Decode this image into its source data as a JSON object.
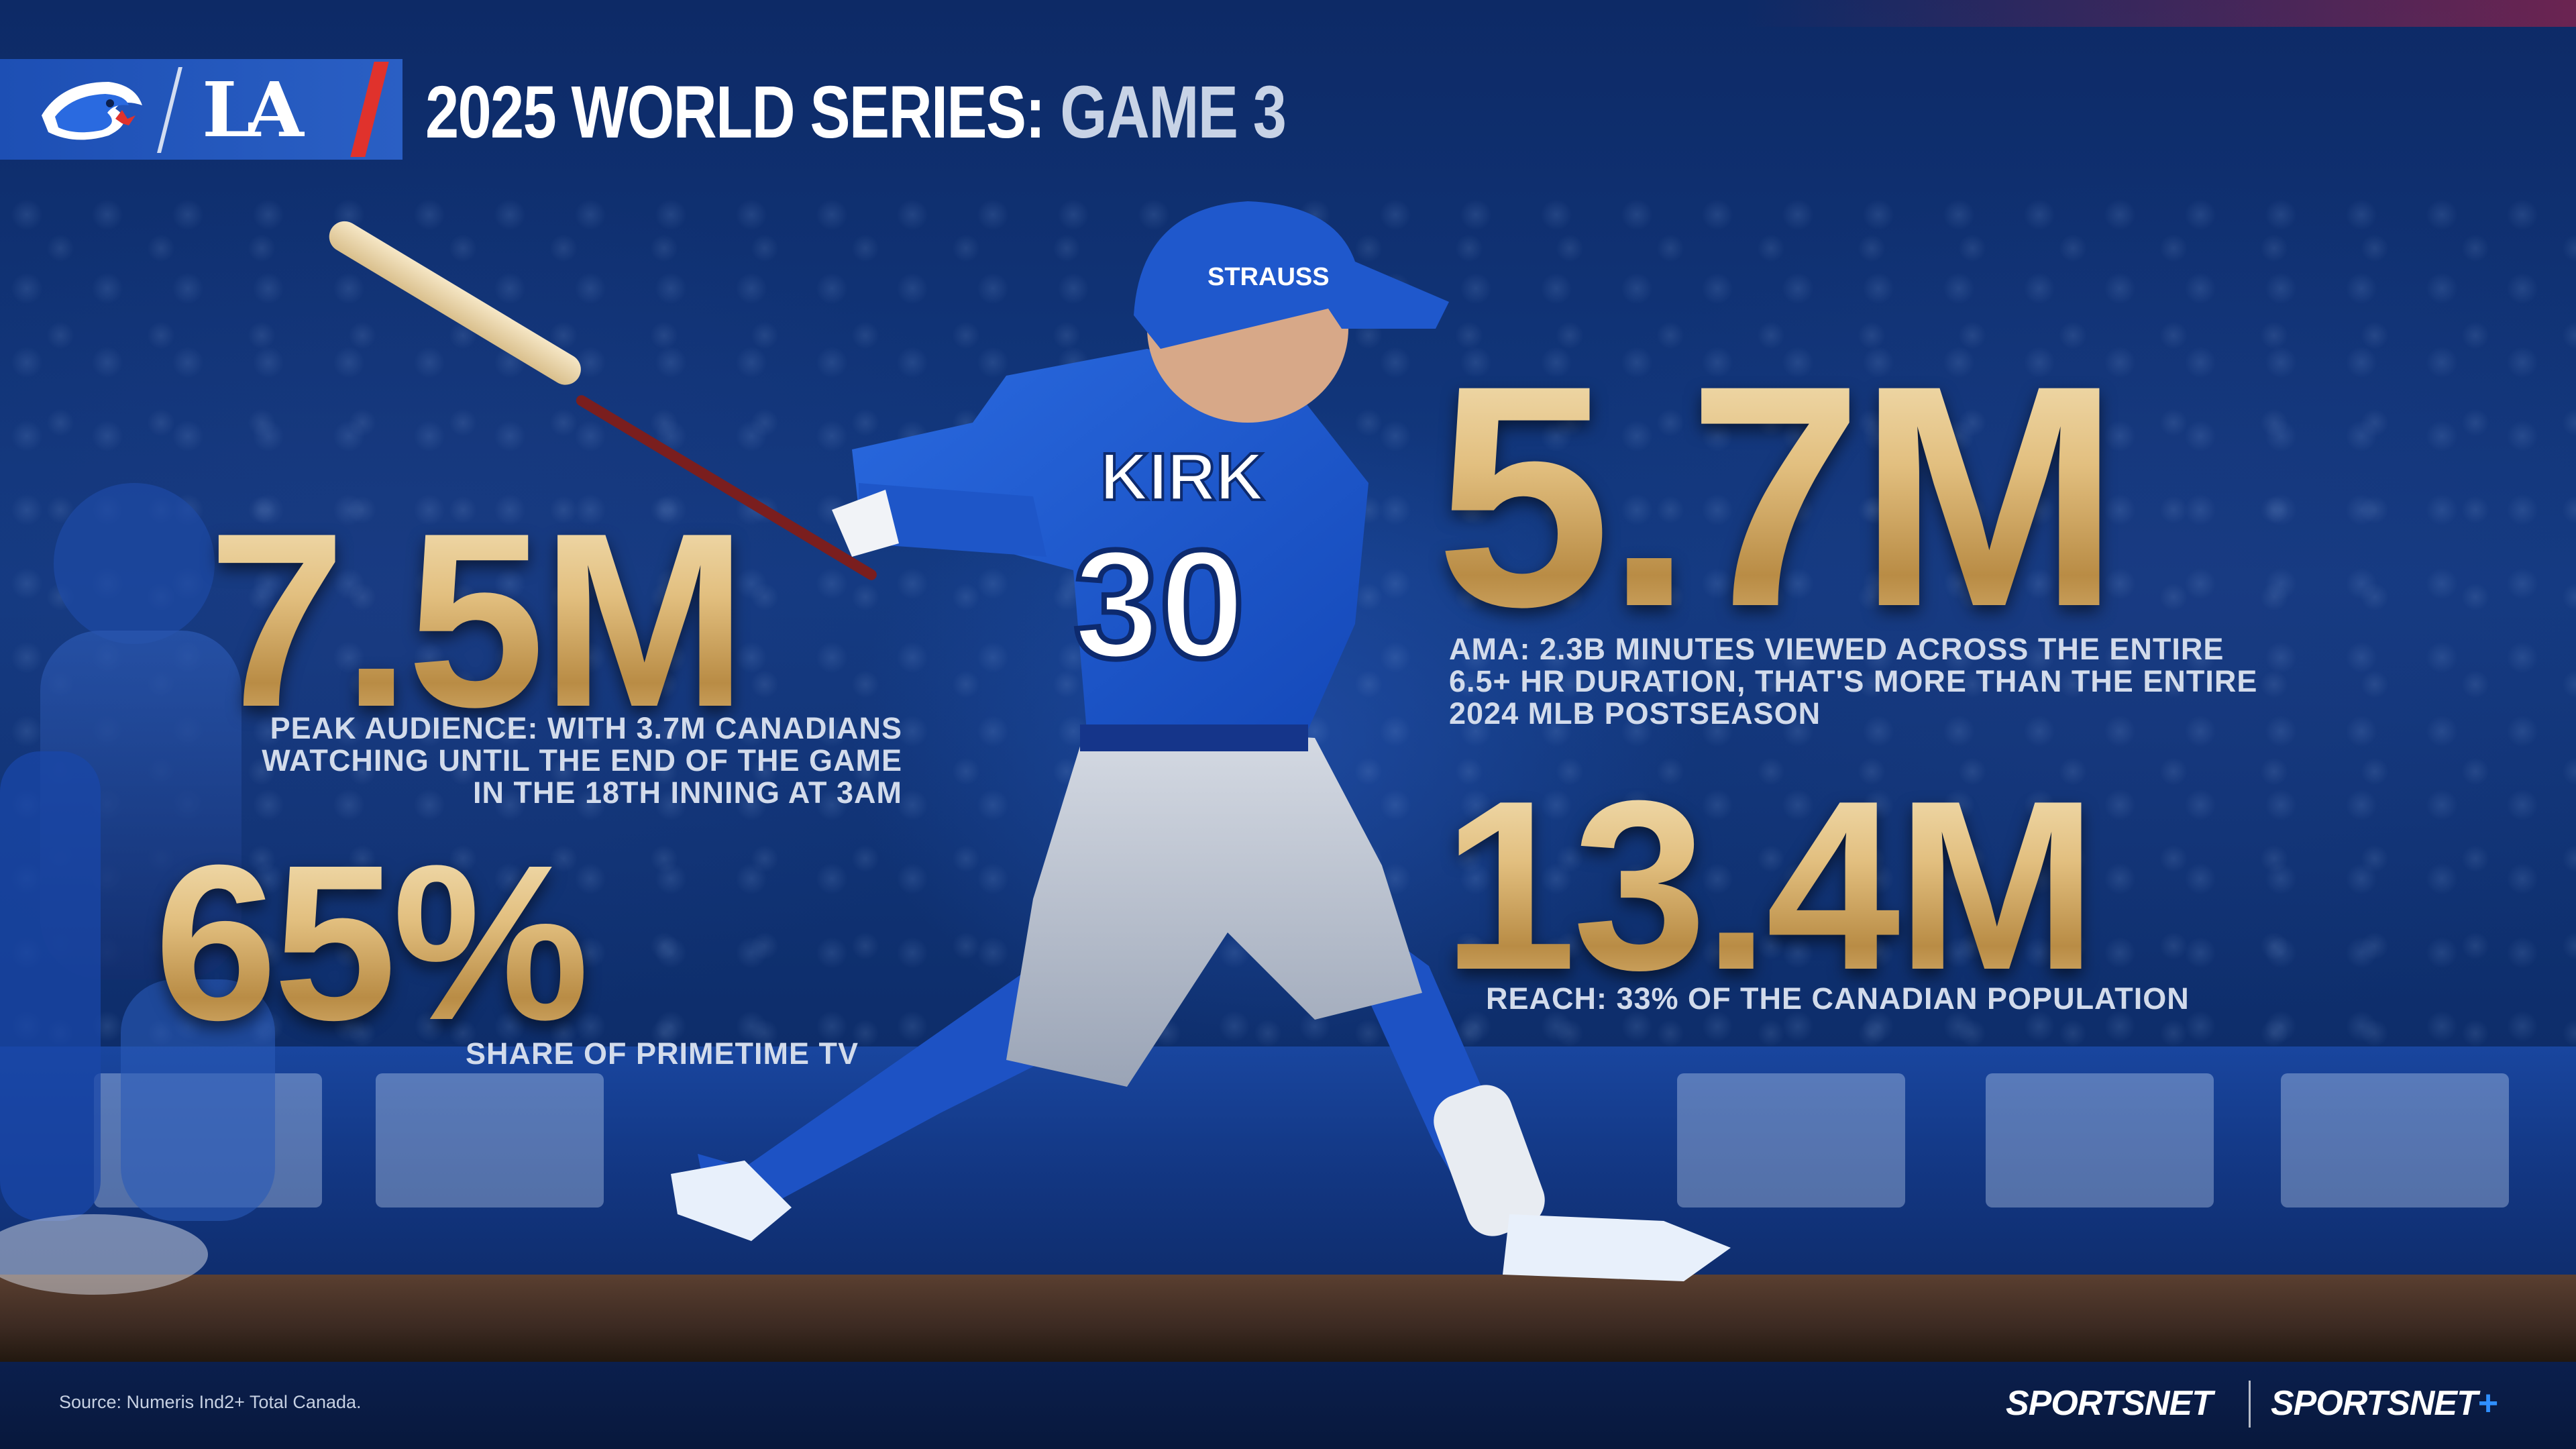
{
  "header": {
    "title_main": "2025 WORLD SERIES:",
    "title_sub": "GAME 3",
    "team_away_icon": "blue-jays-logo",
    "team_home_text": "LA"
  },
  "player": {
    "name": "KIRK",
    "number": "30",
    "helmet_text": "STRAUSS"
  },
  "stats": [
    {
      "value": "7.5M",
      "description": "PEAK AUDIENCE: WITH 3.7M CANADIANS WATCHING UNTIL THE END OF THE GAME IN THE 18TH INNING AT 3AM",
      "lines": [
        "PEAK AUDIENCE: WITH 3.7M CANADIANS",
        "WATCHING UNTIL THE END OF THE GAME",
        "IN THE 18TH INNING AT 3AM"
      ]
    },
    {
      "value": "65%",
      "description": "SHARE OF PRIMETIME TV"
    },
    {
      "value": "5.7M",
      "description": "AMA: 2.3B MINUTES VIEWED ACROSS THE ENTIRE 6.5+ HR DURATION, THAT'S MORE THAN THE ENTIRE 2024 MLB POSTSEASON",
      "lines": [
        "AMA: 2.3B MINUTES VIEWED ACROSS THE ENTIRE",
        "6.5+ HR DURATION, THAT'S MORE THAN THE ENTIRE",
        "2024 MLB POSTSEASON"
      ]
    },
    {
      "value": "13.4M",
      "description": "REACH: 33% OF THE CANADIAN POPULATION"
    }
  ],
  "footer": {
    "source": "Source: Numeris Ind2+ Total Canada.",
    "brand_1": "SPORTSNET",
    "brand_2": "SPORTSNET",
    "brand_2_suffix": "+"
  },
  "colors": {
    "background": "#0b1f4d",
    "gold": "#dcb676",
    "jays_blue": "#1d5fd0",
    "accent_red": "#e0322c"
  }
}
